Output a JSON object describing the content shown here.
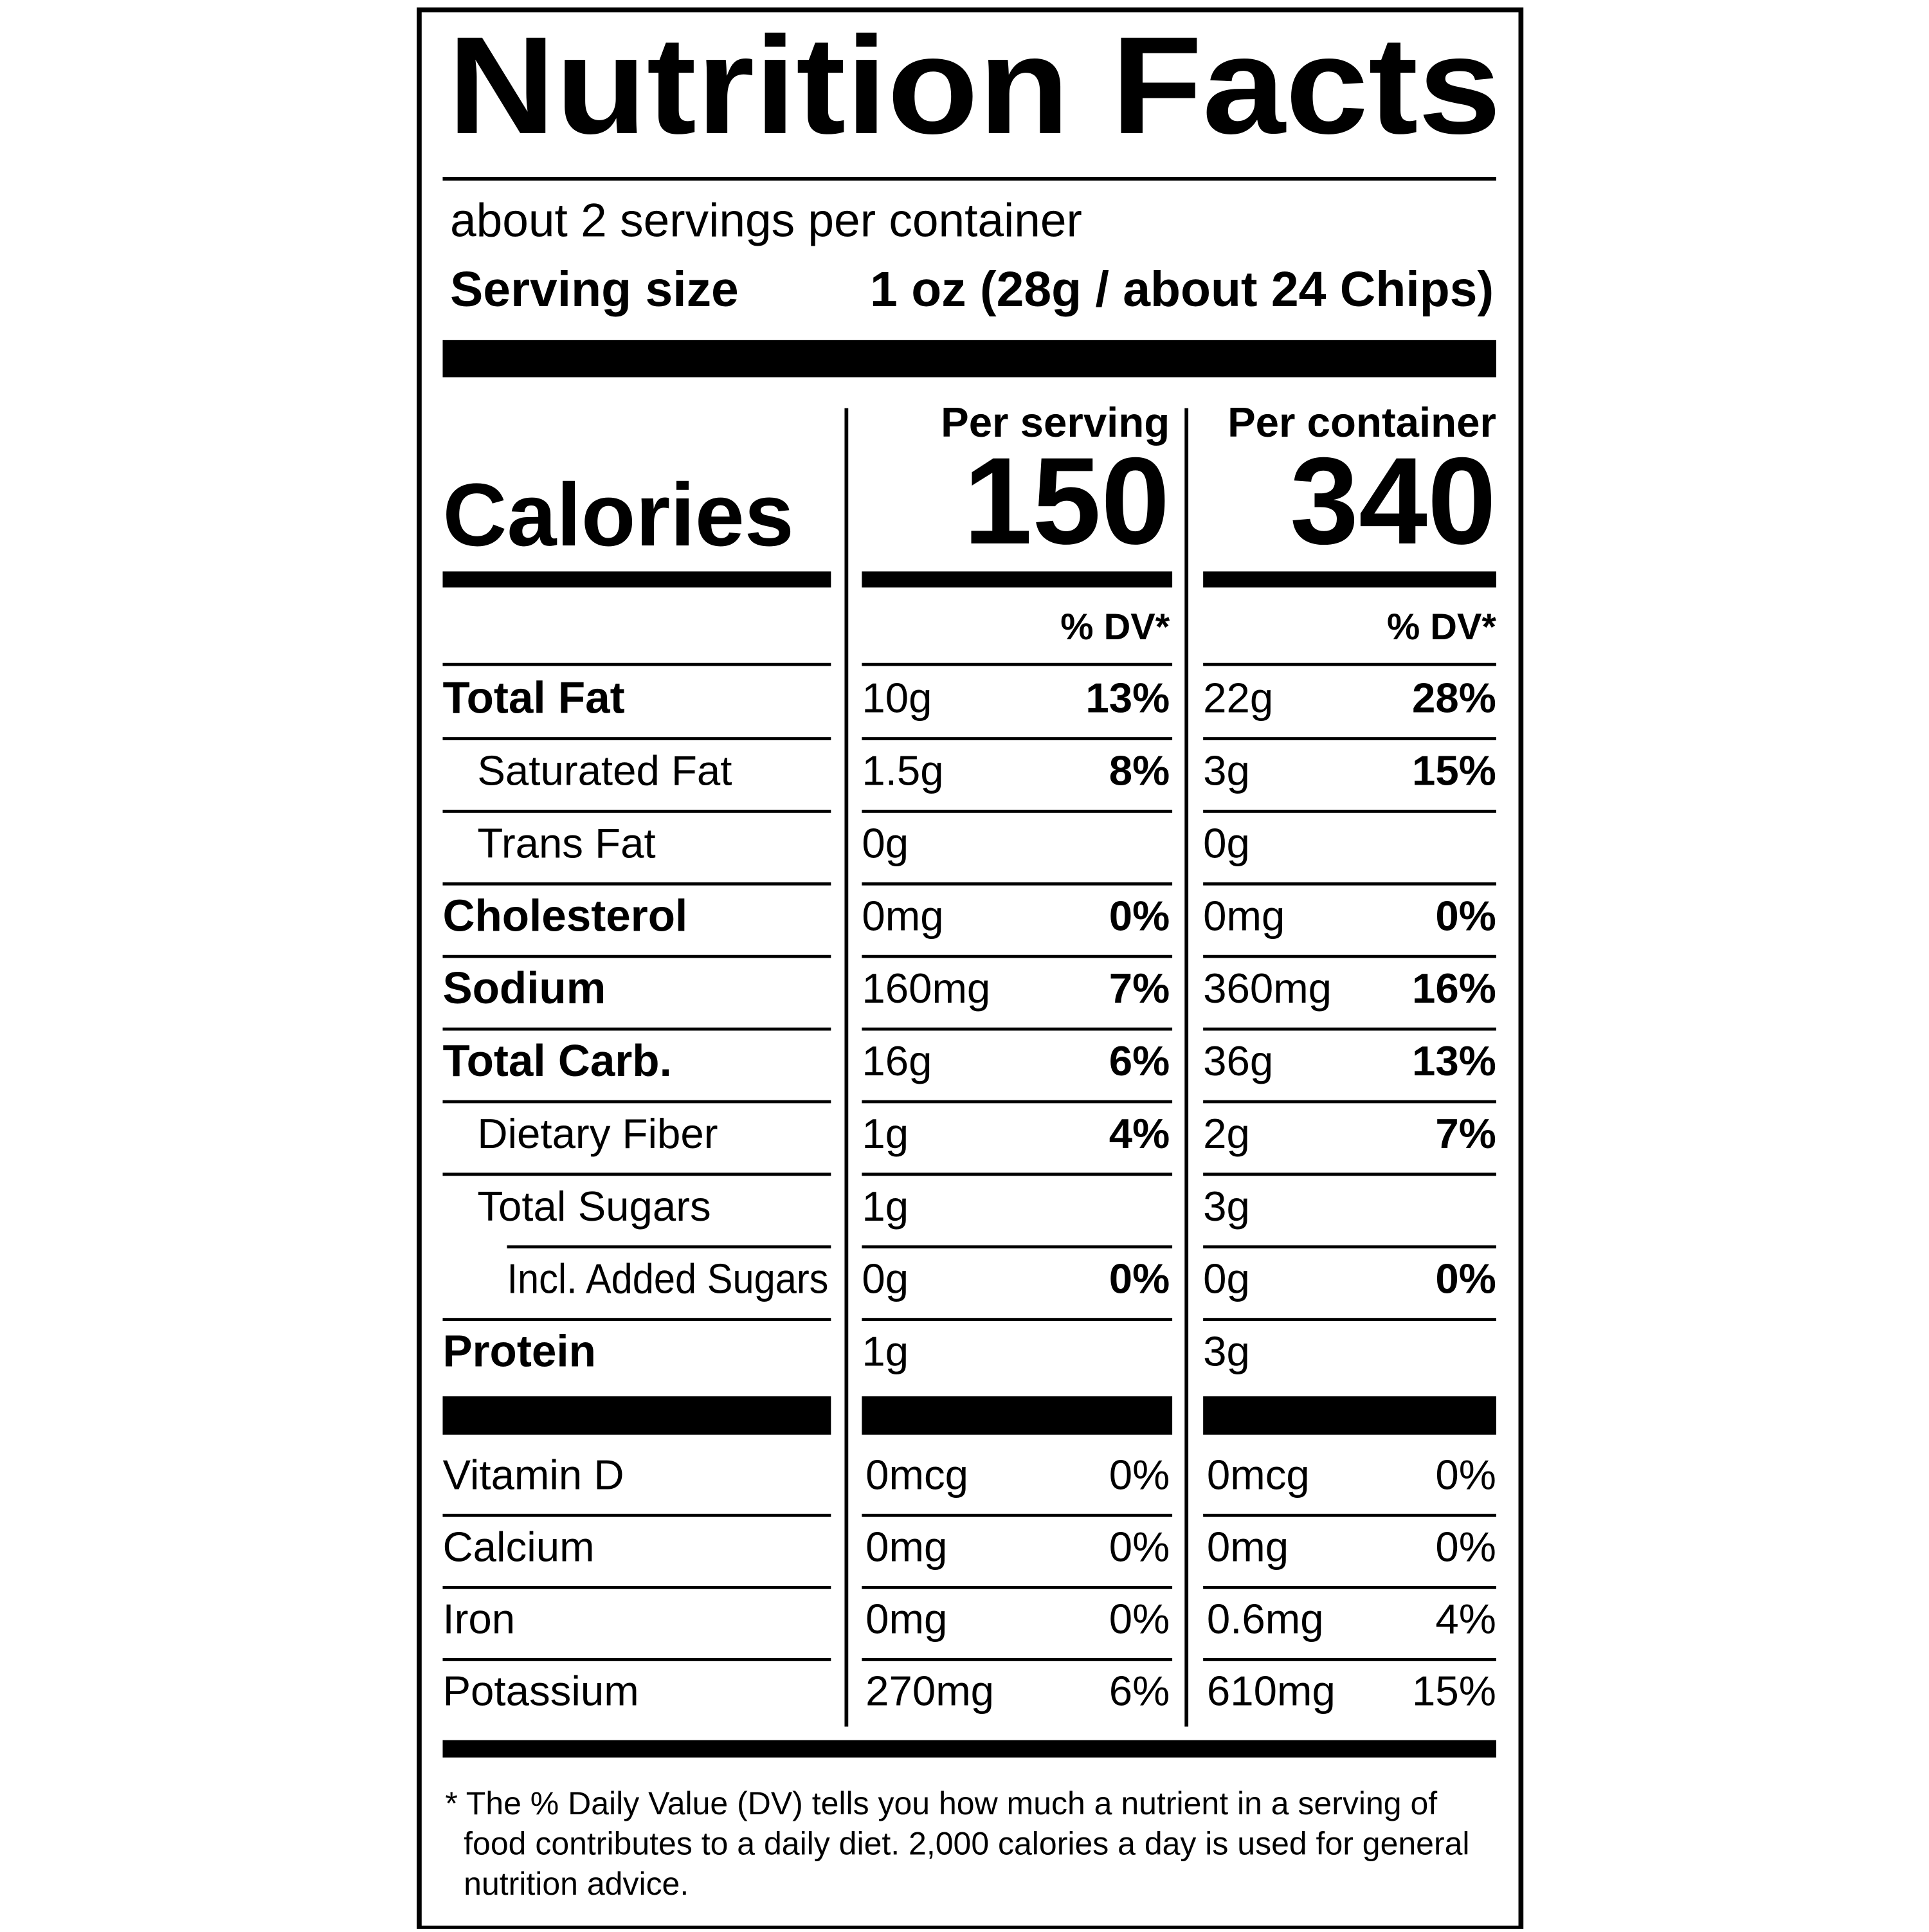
{
  "header": {
    "title": "Nutrition Facts",
    "servings": "about 2 servings per container",
    "serving_size_label": "Serving size",
    "serving_size_value": "1 oz (28g / about 24 Chips)"
  },
  "columns": {
    "per_serving": "Per serving",
    "per_container": "Per container"
  },
  "calories": {
    "label": "Calories",
    "per_serving": "150",
    "per_container": "340"
  },
  "dv_header": {
    "per_serving": "% DV*",
    "per_container": "% DV*"
  },
  "rows": [
    {
      "name": "Total Fat",
      "per_serving": {
        "amount": "10g",
        "dv": "13%"
      },
      "per_container": {
        "amount": "22g",
        "dv": "28%"
      }
    },
    {
      "name": "Saturated Fat",
      "per_serving": {
        "amount": "1.5g",
        "dv": "8%"
      },
      "per_container": {
        "amount": "3g",
        "dv": "15%"
      }
    },
    {
      "name": "Trans Fat",
      "per_serving": {
        "amount": "0g"
      },
      "per_container": {
        "amount": "0g"
      }
    },
    {
      "name": "Cholesterol",
      "per_serving": {
        "amount": "0mg",
        "dv": "0%"
      },
      "per_container": {
        "amount": "0mg",
        "dv": "0%"
      }
    },
    {
      "name": "Sodium",
      "per_serving": {
        "amount": "160mg",
        "dv": "7%"
      },
      "per_container": {
        "amount": "360mg",
        "dv": "16%"
      }
    },
    {
      "name": "Total Carb.",
      "per_serving": {
        "amount": "16g",
        "dv": "6%"
      },
      "per_container": {
        "amount": "36g",
        "dv": "13%"
      }
    },
    {
      "name": "Dietary Fiber",
      "per_serving": {
        "amount": "1g",
        "dv": "4%"
      },
      "per_container": {
        "amount": "2g",
        "dv": "7%"
      }
    },
    {
      "name": "Total Sugars",
      "per_serving": {
        "amount": "1g"
      },
      "per_container": {
        "amount": "3g"
      }
    },
    {
      "name": "Incl. Added Sugars",
      "per_serving": {
        "amount": "0g",
        "dv": "0%"
      },
      "per_container": {
        "amount": "0g",
        "dv": "0%"
      }
    },
    {
      "name": "Protein",
      "per_serving": {
        "amount": "1g"
      },
      "per_container": {
        "amount": "3g"
      }
    }
  ],
  "vitamins": [
    {
      "name": "Vitamin D",
      "per_serving": {
        "amount": "0mcg",
        "dv": "0%"
      },
      "per_container": {
        "amount": "0mcg",
        "dv": "0%"
      }
    },
    {
      "name": "Calcium",
      "per_serving": {
        "amount": "0mg",
        "dv": "0%"
      },
      "per_container": {
        "amount": "0mg",
        "dv": "0%"
      }
    },
    {
      "name": "Iron",
      "per_serving": {
        "amount": "0mg",
        "dv": "0%"
      },
      "per_container": {
        "amount": "0.6mg",
        "dv": "4%"
      }
    },
    {
      "name": "Potassium",
      "per_serving": {
        "amount": "270mg",
        "dv": "6%"
      },
      "per_container": {
        "amount": "610mg",
        "dv": "15%"
      }
    }
  ],
  "footnote": [
    "* The % Daily Value (DV) tells you how much a nutrient in a serving of",
    "food contributes to a daily diet. 2,000 calories a day is used for general",
    "nutrition advice."
  ]
}
